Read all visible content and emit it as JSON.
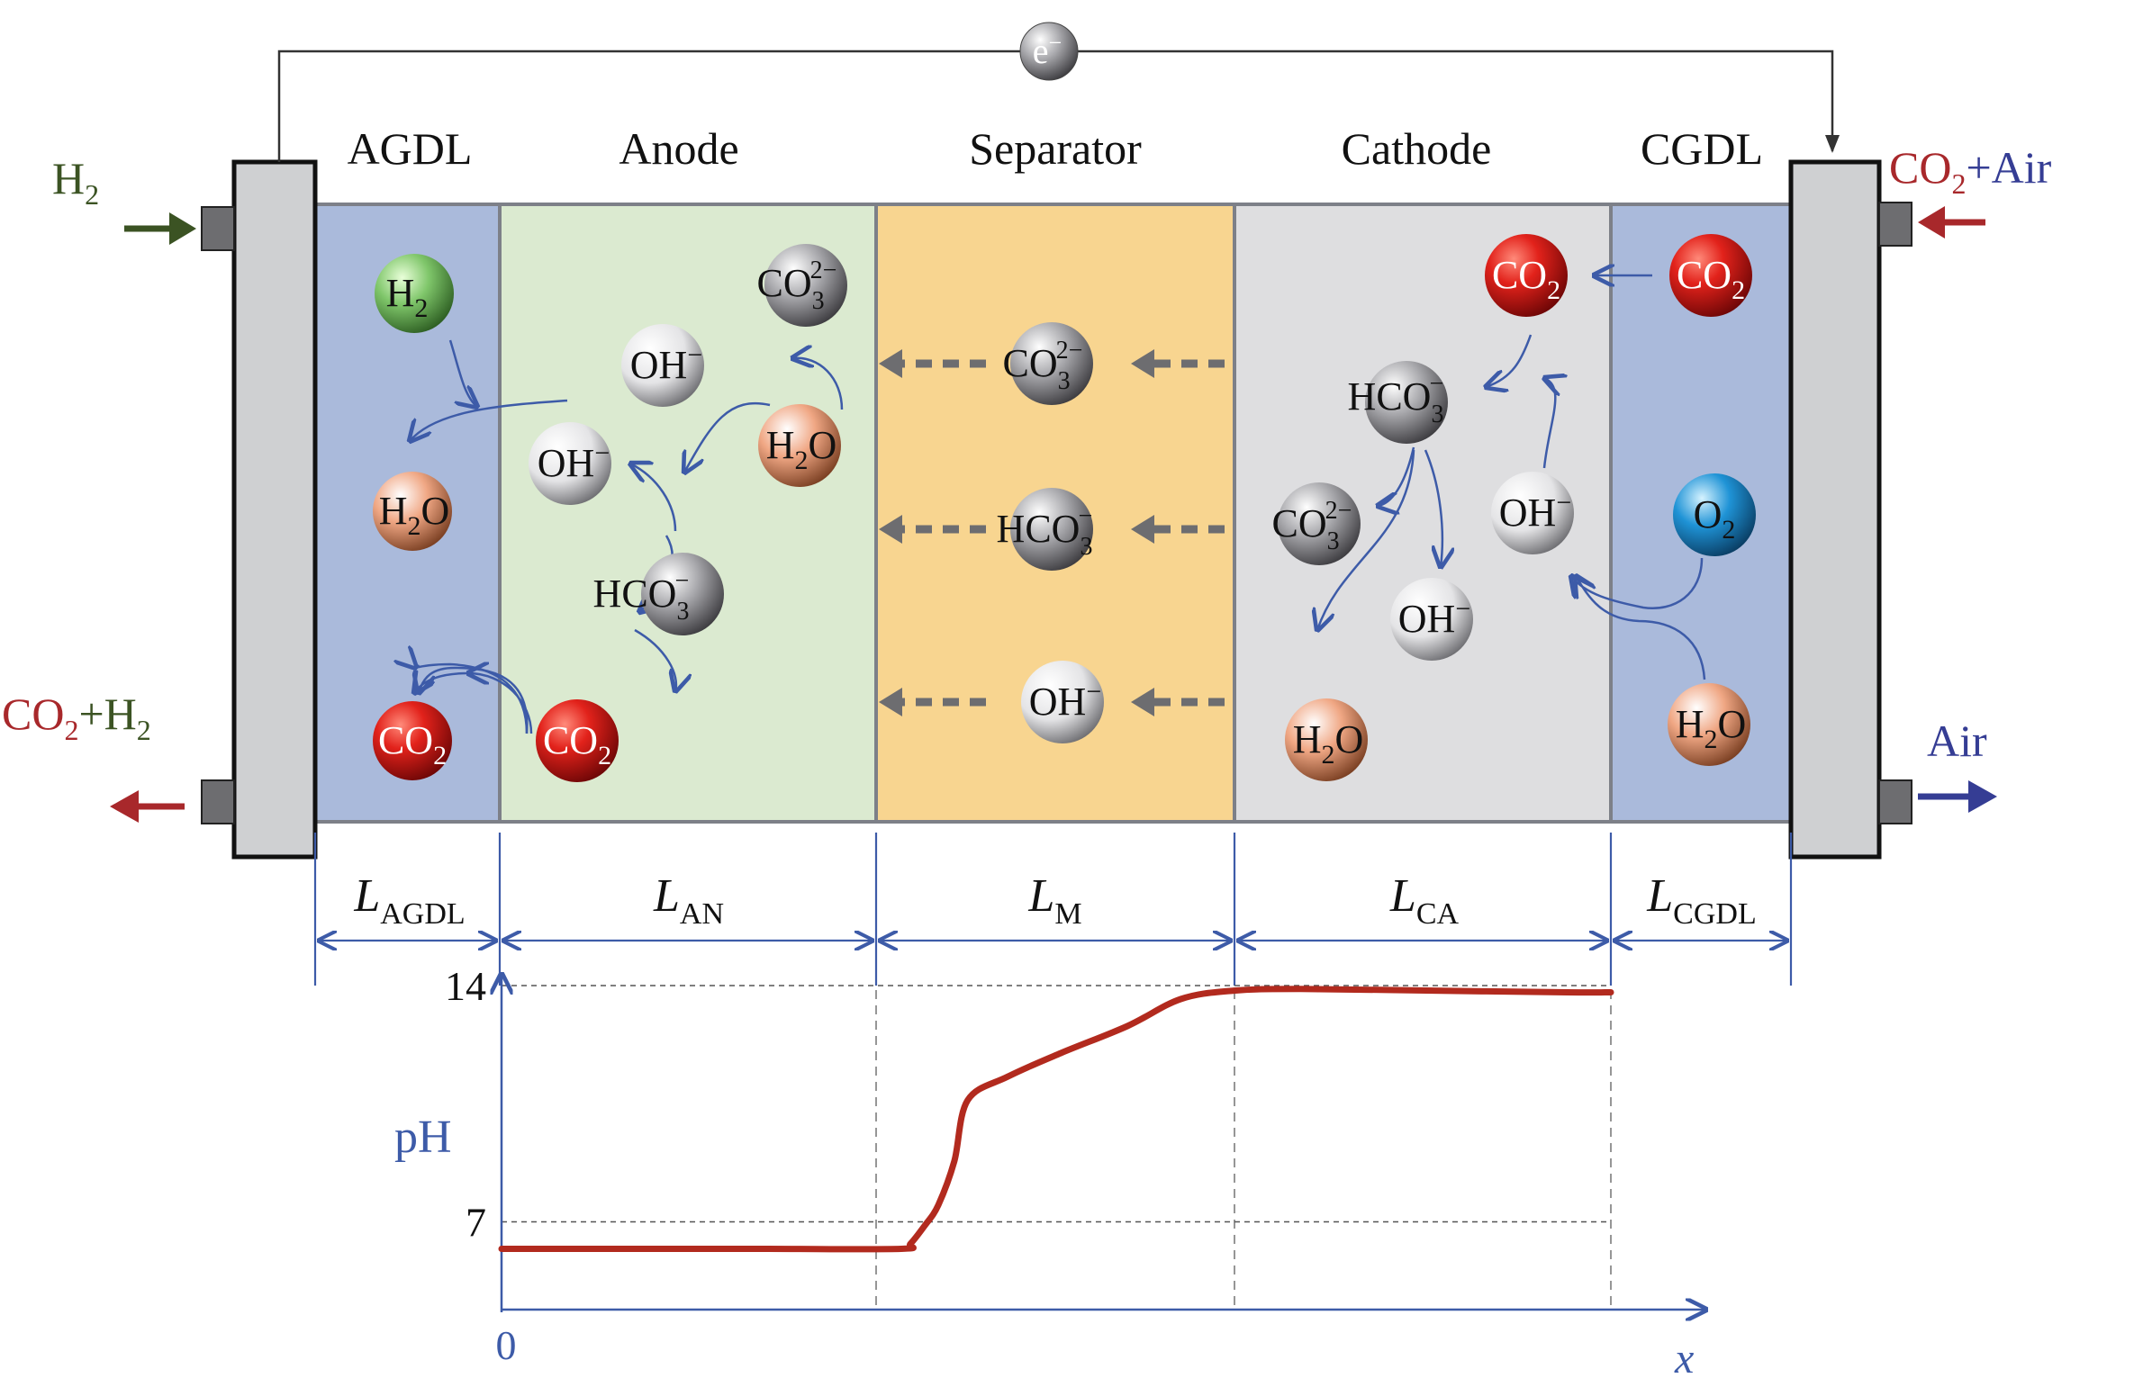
{
  "electron": {
    "base": "e",
    "sup": "−"
  },
  "regions": {
    "agdl": "AGDL",
    "anode": "Anode",
    "separator": "Separator",
    "cathode": "Cathode",
    "cgdl": "CGDL"
  },
  "flows": {
    "h2_in": {
      "base": "H",
      "sub": "2"
    },
    "co2_air_in": {
      "a": "CO",
      "sub": "2",
      "b": "+Air"
    },
    "co2_h2_out": {
      "a": "CO",
      "sub1": "2",
      "b": "+H",
      "sub2": "2"
    },
    "air_out": "Air"
  },
  "lengths": {
    "agdl": {
      "L": "L",
      "sub": "AGDL"
    },
    "an": {
      "L": "L",
      "sub": "AN"
    },
    "m": {
      "L": "L",
      "sub": "M"
    },
    "ca": {
      "L": "L",
      "sub": "CA"
    },
    "cgdl": {
      "L": "L",
      "sub": "CGDL"
    }
  },
  "species": {
    "h2": {
      "base": "H",
      "sub": "2"
    },
    "h2o": {
      "a": "H",
      "sub": "2",
      "b": "O"
    },
    "co2": {
      "a": "CO",
      "sub": "2"
    },
    "oh": {
      "base": "OH",
      "sup": "−"
    },
    "co3": {
      "base": "CO",
      "sub": "3",
      "sup": "2−"
    },
    "hco3": {
      "base": "HCO",
      "sub": "3",
      "sup": "−"
    },
    "o2": {
      "base": "O",
      "sub": "2"
    }
  },
  "chart_data": {
    "type": "line",
    "title": "",
    "xlabel": "x",
    "ylabel": "pH",
    "x_tick_labels": [
      "0"
    ],
    "y_tick_labels": [
      "7",
      "14"
    ],
    "y_reference_lines": [
      7,
      14
    ],
    "region_boundaries": [
      "L_AGDL",
      "L_AN",
      "L_M",
      "L_CA",
      "L_CGDL"
    ],
    "series": [
      {
        "name": "pH",
        "color": "#b22a1e",
        "x": [
          0.0,
          0.1,
          0.2,
          0.3,
          0.307,
          0.318,
          0.328,
          0.34,
          0.35,
          0.38,
          0.42,
          0.47,
          0.51,
          0.55,
          0.6,
          0.7,
          0.8,
          0.833
        ],
        "y": [
          6.2,
          6.2,
          6.2,
          6.2,
          6.35,
          6.9,
          7.5,
          8.8,
          10.6,
          11.3,
          12.0,
          12.8,
          13.6,
          13.85,
          13.9,
          13.85,
          13.8,
          13.8
        ]
      }
    ],
    "ylim": [
      4.4,
      14.4
    ],
    "xlim": [
      0,
      1
    ]
  },
  "colors": {
    "gdl_blue": "#aabadb",
    "anode_green": "#dbead0",
    "separator_orange": "#f8d590",
    "cathode_grey": "#dedee0",
    "curve_red": "#b22a1e",
    "axis_blue": "#3d5ba8",
    "inlet_green": "#3b5323",
    "outlet_red": "#a8282b",
    "outlet_blue": "#353d94"
  }
}
